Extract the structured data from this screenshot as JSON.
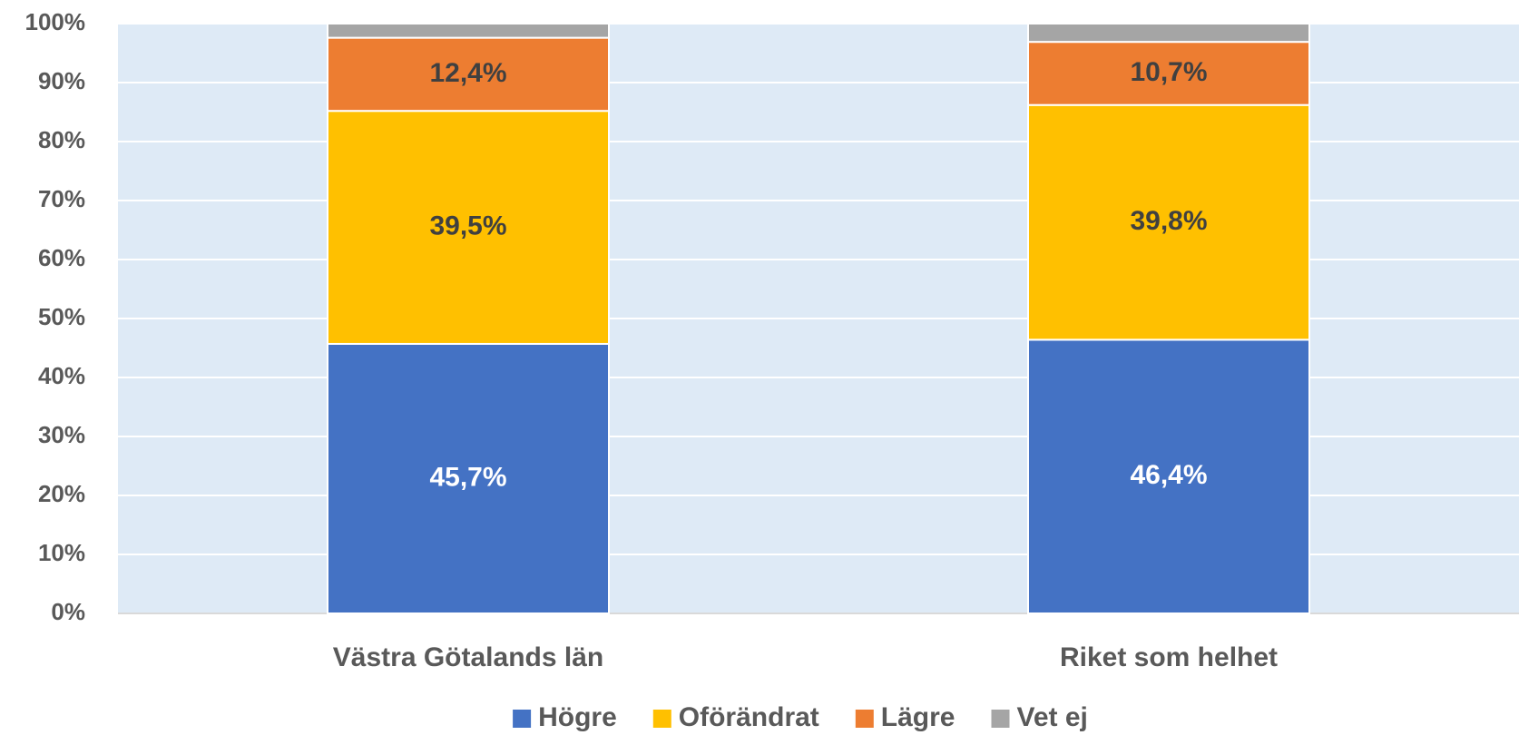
{
  "chart_data": {
    "type": "stacked_bar",
    "categories": [
      "Västra Götalands län",
      "Riket som helhet"
    ],
    "series": [
      {
        "name": "Högre",
        "color": "#4472c4",
        "values": [
          45.7,
          46.4
        ],
        "value_labels": [
          "45,7%",
          "46,4%"
        ],
        "label_color": "#ffffff"
      },
      {
        "name": "Oförändrat",
        "color": "#ffc000",
        "values": [
          39.5,
          39.8
        ],
        "value_labels": [
          "39,5%",
          "39,8%"
        ],
        "label_color": "#404040"
      },
      {
        "name": "Lägre",
        "color": "#ed7d31",
        "values": [
          12.4,
          10.7
        ],
        "value_labels": [
          "12,4%",
          "10,7%"
        ],
        "label_color": "#404040"
      },
      {
        "name": "Vet ej",
        "color": "#a5a5a5",
        "values": [
          2.4,
          3.1
        ]
      }
    ],
    "ylim": [
      0,
      100
    ],
    "yticks": [
      {
        "value": 0,
        "label": "0%"
      },
      {
        "value": 10,
        "label": "10%"
      },
      {
        "value": 20,
        "label": "20%"
      },
      {
        "value": 30,
        "label": "30%"
      },
      {
        "value": 40,
        "label": "40%"
      },
      {
        "value": 50,
        "label": "50%"
      },
      {
        "value": 60,
        "label": "60%"
      },
      {
        "value": 70,
        "label": "70%"
      },
      {
        "value": 80,
        "label": "80%"
      },
      {
        "value": 90,
        "label": "90%"
      },
      {
        "value": 100,
        "label": "100%"
      }
    ],
    "grid": true,
    "legend": "bottom"
  }
}
